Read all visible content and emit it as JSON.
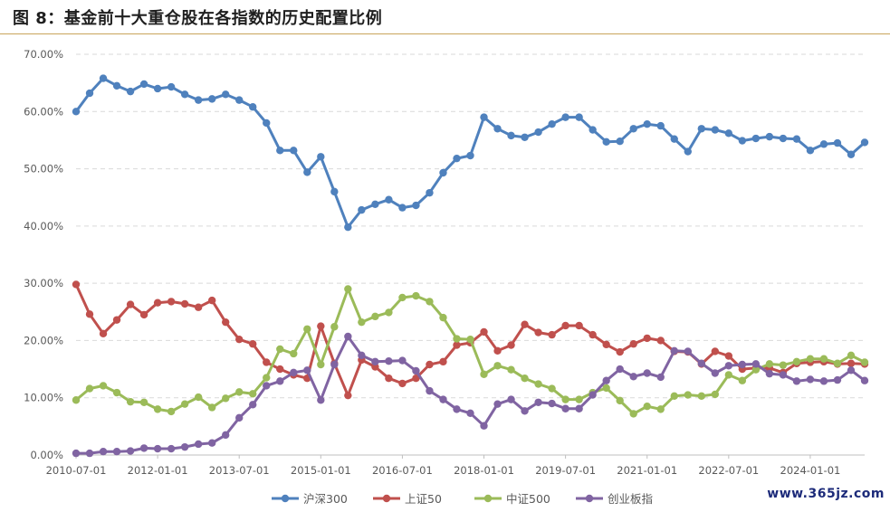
{
  "title": "图 8：基金前十大重仓股在各指数的历史配置比例",
  "watermark": "www.365jz.com",
  "chart_data": {
    "type": "line",
    "ylim": [
      0,
      0.7
    ],
    "yticks": [
      "0.00%",
      "10.00%",
      "20.00%",
      "30.00%",
      "40.00%",
      "50.00%",
      "60.00%",
      "70.00%"
    ],
    "xticks": [
      "2010-07-01",
      "2012-01-01",
      "2013-07-01",
      "2015-01-01",
      "2016-07-01",
      "2018-01-01",
      "2019-07-01",
      "2021-01-01",
      "2022-07-01",
      "2024-01-01"
    ],
    "x_start": "2010-07-01",
    "x_step_months": 3,
    "grid": true,
    "legend_position": "bottom",
    "series": [
      {
        "name": "沪深300",
        "color": "#4f81bd",
        "values": [
          60.0,
          63.2,
          65.8,
          64.5,
          63.5,
          64.8,
          64.0,
          64.3,
          63.0,
          62.0,
          62.2,
          63.0,
          62.0,
          60.8,
          58.0,
          53.2,
          53.2,
          49.4,
          52.1,
          46.0,
          39.8,
          42.8,
          43.8,
          44.6,
          43.2,
          43.6,
          45.8,
          49.3,
          51.8,
          52.3,
          59.0,
          57.0,
          55.8,
          55.5,
          56.4,
          57.8,
          59.0,
          59.0,
          56.8,
          54.7,
          54.8,
          57.0,
          57.8,
          57.5,
          55.2,
          53.0,
          57.0,
          56.8,
          56.2,
          54.9,
          55.3,
          55.6,
          55.3,
          55.2,
          53.2,
          54.3,
          54.5,
          52.5,
          54.6
        ]
      },
      {
        "name": "上证50",
        "color": "#c0504d",
        "values": [
          29.8,
          24.6,
          21.2,
          23.6,
          26.3,
          24.5,
          26.6,
          26.8,
          26.4,
          25.8,
          27.0,
          23.2,
          20.2,
          19.4,
          16.2,
          15.0,
          14.0,
          13.4,
          22.5,
          16.0,
          10.4,
          16.6,
          15.4,
          13.4,
          12.5,
          13.4,
          15.8,
          16.3,
          19.2,
          19.6,
          21.5,
          18.2,
          19.2,
          22.8,
          21.4,
          21.0,
          22.6,
          22.6,
          21.0,
          19.3,
          18.0,
          19.4,
          20.4,
          20.0,
          18.1,
          18.0,
          15.9,
          18.1,
          17.3,
          15.0,
          15.2,
          15.2,
          14.4,
          16.0,
          16.2,
          16.3,
          15.9,
          16.0,
          15.9
        ]
      },
      {
        "name": "中证500",
        "color": "#9bbb59",
        "values": [
          9.6,
          11.6,
          12.1,
          10.9,
          9.3,
          9.2,
          8.0,
          7.6,
          8.9,
          10.1,
          8.3,
          9.9,
          11.0,
          10.7,
          13.5,
          18.5,
          17.7,
          22.0,
          15.8,
          22.4,
          29.0,
          23.2,
          24.2,
          24.9,
          27.5,
          27.8,
          26.8,
          24.0,
          20.3,
          20.2,
          14.1,
          15.6,
          14.9,
          13.4,
          12.4,
          11.6,
          9.7,
          9.7,
          10.9,
          11.7,
          9.5,
          7.2,
          8.5,
          8.0,
          10.3,
          10.5,
          10.3,
          10.6,
          14.0,
          13.0,
          14.9,
          15.9,
          15.7,
          16.3,
          16.8,
          16.8,
          16.0,
          17.4,
          16.2
        ]
      },
      {
        "name": "创业板指",
        "color": "#8064a2",
        "values": [
          0.3,
          0.3,
          0.6,
          0.6,
          0.7,
          1.2,
          1.1,
          1.1,
          1.4,
          1.9,
          2.1,
          3.5,
          6.5,
          8.8,
          12.1,
          12.9,
          14.4,
          14.8,
          9.6,
          15.8,
          20.7,
          17.4,
          16.3,
          16.4,
          16.5,
          14.7,
          11.2,
          9.7,
          8.0,
          7.3,
          5.1,
          8.9,
          9.7,
          7.7,
          9.2,
          9.0,
          8.1,
          8.1,
          10.5,
          13.0,
          15.0,
          13.7,
          14.3,
          13.6,
          18.2,
          18.1,
          16.0,
          14.3,
          15.6,
          15.8,
          15.9,
          14.2,
          14.0,
          12.9,
          13.2,
          12.9,
          13.1,
          14.8,
          13.0
        ]
      }
    ]
  }
}
